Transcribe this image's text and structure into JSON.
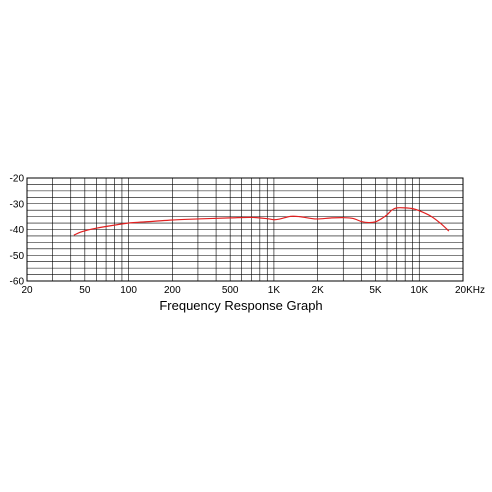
{
  "chart_data": {
    "type": "line",
    "title": "Frequency Response Graph",
    "xscale": "log",
    "xlim": [
      20,
      20000
    ],
    "ylim": [
      -60,
      -20
    ],
    "x_ticks": [
      {
        "value": 20,
        "label": "20"
      },
      {
        "value": 50,
        "label": "50"
      },
      {
        "value": 100,
        "label": "100"
      },
      {
        "value": 200,
        "label": "200"
      },
      {
        "value": 500,
        "label": "500"
      },
      {
        "value": 1000,
        "label": "1K"
      },
      {
        "value": 2000,
        "label": "2K"
      },
      {
        "value": 5000,
        "label": "5K"
      },
      {
        "value": 10000,
        "label": "10K"
      },
      {
        "value": 20000,
        "label": "20KHz"
      }
    ],
    "y_ticks": [
      {
        "value": -20,
        "label": "-20"
      },
      {
        "value": -30,
        "label": "-30"
      },
      {
        "value": -40,
        "label": "-40"
      },
      {
        "value": -50,
        "label": "-50"
      },
      {
        "value": -60,
        "label": "-60"
      }
    ],
    "grid": true,
    "series": [
      {
        "color": "#e02020",
        "x": [
          42,
          48,
          60,
          80,
          100,
          150,
          200,
          300,
          500,
          700,
          900,
          1000,
          1100,
          1300,
          1500,
          1800,
          2000,
          2500,
          3000,
          3500,
          4000,
          4500,
          5000,
          5500,
          6000,
          6500,
          7000,
          8000,
          9000,
          10000,
          12000,
          14000,
          16000
        ],
        "y": [
          -42.2,
          -40.8,
          -39.5,
          -38.3,
          -37.5,
          -36.8,
          -36.3,
          -35.9,
          -35.5,
          -35.3,
          -35.8,
          -36.2,
          -35.9,
          -34.9,
          -35.0,
          -35.7,
          -35.9,
          -35.5,
          -35.4,
          -35.7,
          -36.9,
          -37.3,
          -37.0,
          -35.8,
          -34.3,
          -32.4,
          -31.6,
          -31.6,
          -31.9,
          -32.7,
          -34.8,
          -37.6,
          -40.6
        ]
      }
    ]
  }
}
